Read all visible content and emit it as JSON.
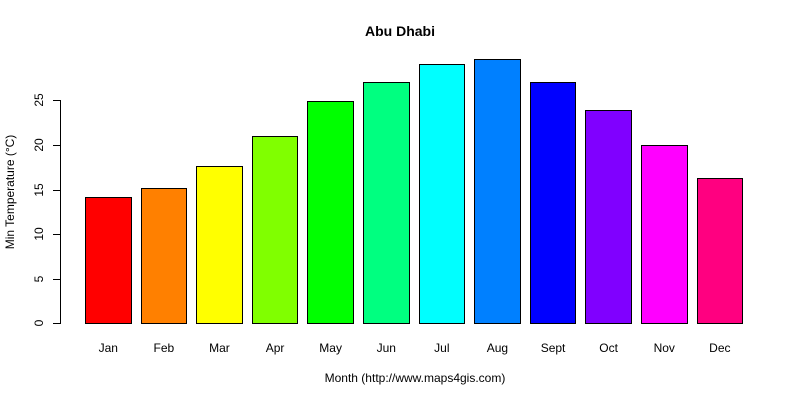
{
  "chart_data": {
    "type": "bar",
    "title": "Abu Dhabi",
    "xlabel": "Month (http://www.maps4gis.com)",
    "ylabel": "Min Temperature (°C)",
    "categories": [
      "Jan",
      "Feb",
      "Mar",
      "Apr",
      "May",
      "Jun",
      "Jul",
      "Aug",
      "Sept",
      "Oct",
      "Nov",
      "Dec"
    ],
    "values": [
      14.2,
      15.2,
      17.6,
      21.0,
      24.9,
      27.0,
      29.1,
      29.6,
      27.1,
      23.9,
      20.0,
      16.3
    ],
    "colors": [
      "#FF0000",
      "#FF8000",
      "#FFFF00",
      "#80FF00",
      "#00FF00",
      "#00FF80",
      "#00FFFF",
      "#0080FF",
      "#0000FF",
      "#8000FF",
      "#FF00FF",
      "#FF0080"
    ],
    "yticks": [
      0,
      5,
      10,
      15,
      20,
      25
    ],
    "ylim": [
      0,
      30
    ],
    "grid": false,
    "legend": null
  }
}
